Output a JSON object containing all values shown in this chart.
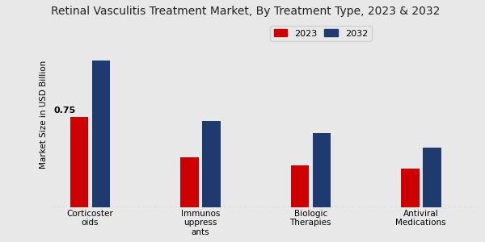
{
  "title": "Retinal Vasculitis Treatment Market, By Treatment Type, 2023 & 2032",
  "ylabel": "Market Size in USD Billion",
  "categories": [
    "Corticoster\noids",
    "Immunos\nuppress\nants",
    "Biologic\nTherapies",
    "Antiviral\nMedications"
  ],
  "values_2023": [
    0.75,
    0.42,
    0.35,
    0.32
  ],
  "values_2032": [
    1.22,
    0.72,
    0.62,
    0.5
  ],
  "color_2023": "#cc0000",
  "color_2032": "#1e3a6e",
  "annotation_value": "0.75",
  "annotation_category_idx": 0,
  "legend_labels": [
    "2023",
    "2032"
  ],
  "background_color": "#e8e8e8",
  "ylim": [
    0,
    1.55
  ],
  "bar_width": 0.28
}
